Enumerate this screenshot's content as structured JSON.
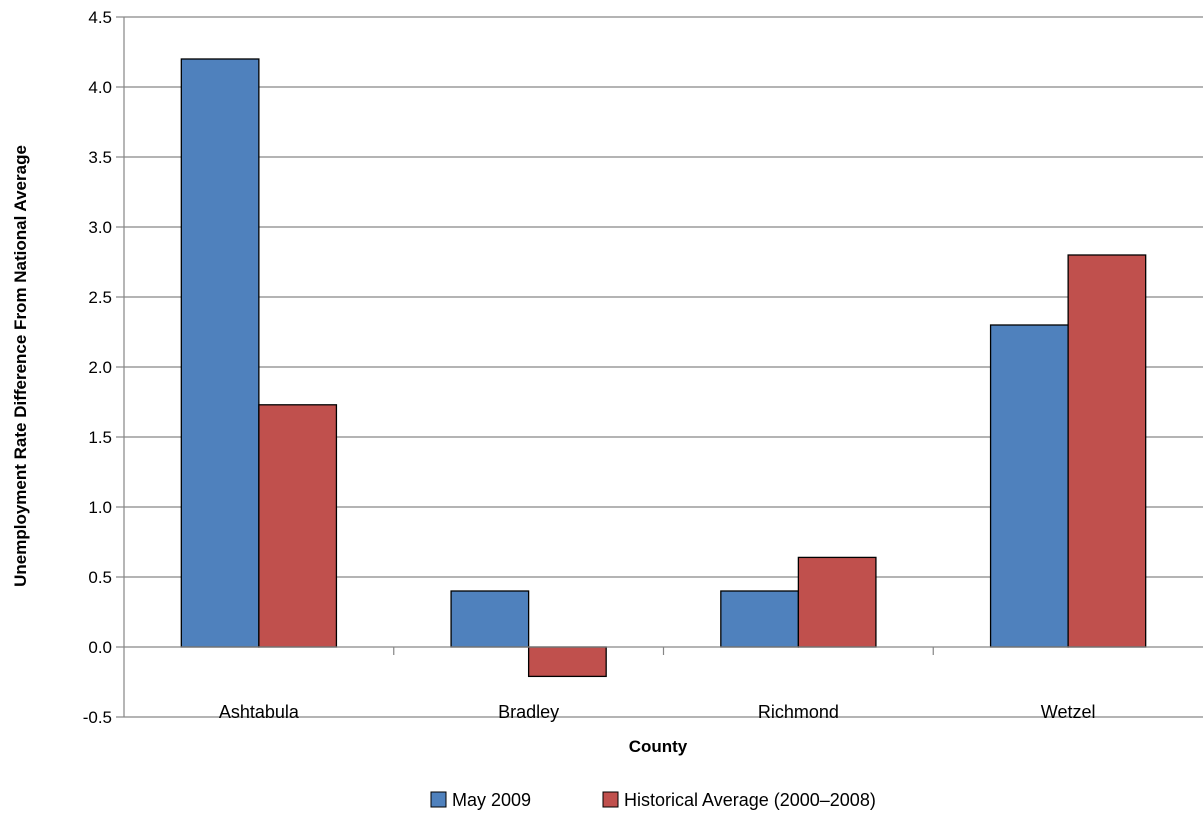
{
  "chart_data": {
    "type": "bar",
    "title": "",
    "xlabel": "County",
    "ylabel": "Unemployment Rate Difference From National Average",
    "categories": [
      "Ashtabula",
      "Bradley",
      "Richmond",
      "Wetzel"
    ],
    "series": [
      {
        "name": "May 2009",
        "color": "#4F81BD",
        "values": [
          4.2,
          0.4,
          0.4,
          2.3
        ]
      },
      {
        "name": "Historical Average (2000–2008)",
        "color": "#C0504D",
        "values": [
          1.73,
          -0.21,
          0.64,
          2.8
        ]
      }
    ],
    "ylim": [
      -0.5,
      4.5
    ],
    "yticks": [
      "-0.5",
      "0.0",
      "0.5",
      "1.0",
      "1.5",
      "2.0",
      "2.5",
      "3.0",
      "3.5",
      "4.0",
      "4.5"
    ],
    "grid": true,
    "legend_position": "bottom"
  }
}
